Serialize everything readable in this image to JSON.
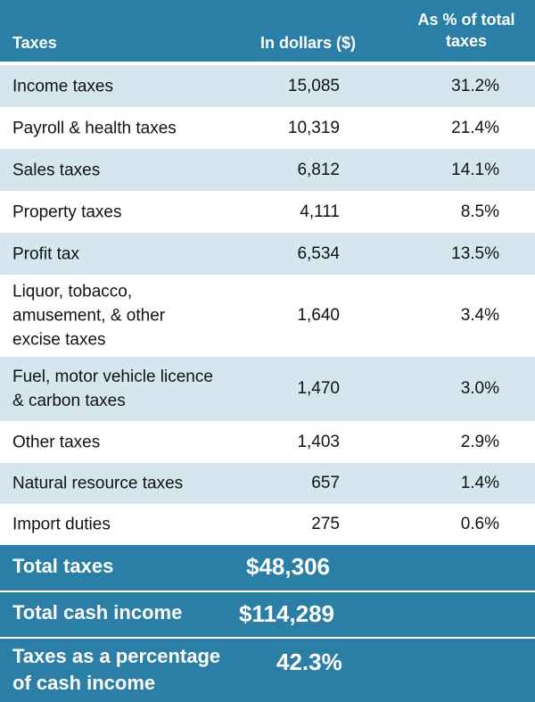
{
  "header": {
    "col_taxes": "Taxes",
    "col_dollars": "In dollars ($)",
    "col_percent_line1": "As % of total",
    "col_percent_line2": "taxes"
  },
  "rows": [
    {
      "label": "Income taxes",
      "dollars": "15,085",
      "percent": "31.2%"
    },
    {
      "label": "Payroll & health taxes",
      "dollars": "10,319",
      "percent": "21.4%"
    },
    {
      "label": "Sales taxes",
      "dollars": "6,812",
      "percent": "14.1%"
    },
    {
      "label": "Property taxes",
      "dollars": "4,111",
      "percent": "8.5%"
    },
    {
      "label": "Profit tax",
      "dollars": "6,534",
      "percent": "13.5%"
    },
    {
      "label_lines": [
        "Liquor, tobacco,",
        "amusement, & other",
        "excise taxes"
      ],
      "dollars": "1,640",
      "percent": "3.4%"
    },
    {
      "label_lines": [
        "Fuel, motor vehicle licence",
        "& carbon taxes"
      ],
      "dollars": "1,470",
      "percent": "3.0%"
    },
    {
      "label": "Other taxes",
      "dollars": "1,403",
      "percent": "2.9%"
    },
    {
      "label": "Natural resource taxes",
      "dollars": "657",
      "percent": "1.4%"
    },
    {
      "label": "Import duties",
      "dollars": "275",
      "percent": "0.6%"
    }
  ],
  "summary": {
    "total_taxes_label": "Total taxes",
    "total_taxes_value": "$48,306",
    "total_cash_label": "Total cash income",
    "total_cash_value": "$114,289",
    "pct_label_line1": "Taxes as a percentage",
    "pct_label_line2": "of cash income",
    "pct_value": "42.3%"
  },
  "colors": {
    "header_blue": "#2b7ea6",
    "row_shaded": "#d6e6ee",
    "row_white": "#ffffff"
  }
}
